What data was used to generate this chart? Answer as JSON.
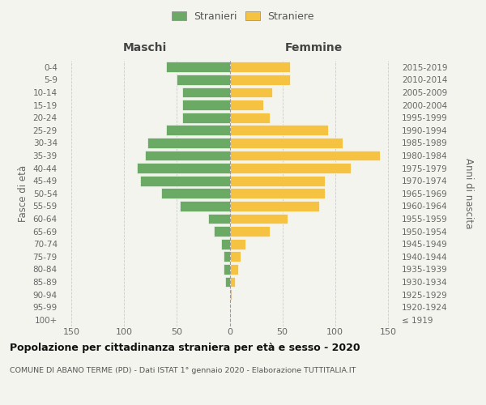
{
  "age_groups": [
    "100+",
    "95-99",
    "90-94",
    "85-89",
    "80-84",
    "75-79",
    "70-74",
    "65-69",
    "60-64",
    "55-59",
    "50-54",
    "45-49",
    "40-44",
    "35-39",
    "30-34",
    "25-29",
    "20-24",
    "15-19",
    "10-14",
    "5-9",
    "0-4"
  ],
  "birth_years": [
    "≤ 1919",
    "1920-1924",
    "1925-1929",
    "1930-1934",
    "1935-1939",
    "1940-1944",
    "1945-1949",
    "1950-1954",
    "1955-1959",
    "1960-1964",
    "1965-1969",
    "1970-1974",
    "1975-1979",
    "1980-1984",
    "1985-1989",
    "1990-1994",
    "1995-1999",
    "2000-2004",
    "2005-2009",
    "2010-2014",
    "2015-2019"
  ],
  "maschi": [
    0,
    0,
    0,
    4,
    6,
    6,
    8,
    15,
    20,
    47,
    65,
    85,
    88,
    80,
    78,
    60,
    45,
    45,
    45,
    50,
    60
  ],
  "femmine": [
    0,
    0,
    2,
    5,
    8,
    10,
    15,
    38,
    55,
    85,
    90,
    90,
    115,
    142,
    107,
    93,
    38,
    32,
    40,
    57,
    57
  ],
  "male_color": "#6aaa64",
  "female_color": "#f5c242",
  "background_color": "#f4f4ee",
  "grid_color": "#cccccc",
  "title": "Popolazione per cittadinanza straniera per età e sesso - 2020",
  "subtitle": "COMUNE DI ABANO TERME (PD) - Dati ISTAT 1° gennaio 2020 - Elaborazione TUTTITALIA.IT",
  "xlabel_left": "Maschi",
  "xlabel_right": "Femmine",
  "ylabel_left": "Fasce di età",
  "ylabel_right": "Anni di nascita",
  "xlim": 160,
  "xticks": [
    -150,
    -100,
    -50,
    0,
    50,
    100,
    150
  ],
  "xticklabels": [
    "150",
    "100",
    "50",
    "0",
    "50",
    "100",
    "150"
  ],
  "legend_stranieri": "Stranieri",
  "legend_straniere": "Straniere"
}
